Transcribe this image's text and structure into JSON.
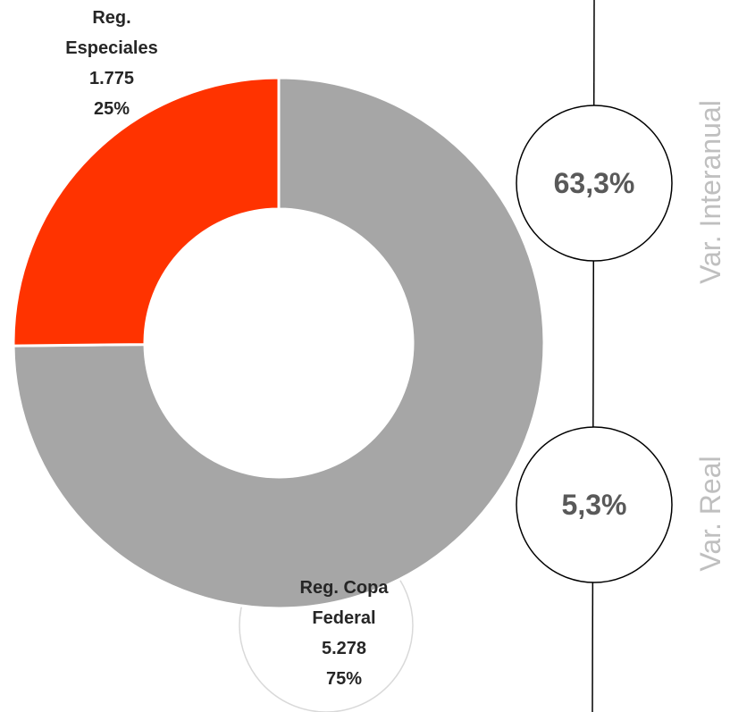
{
  "chart_data": {
    "type": "donut",
    "categories": [
      "Reg. Copa Federal",
      "Reg. Especiales"
    ],
    "values": [
      5278,
      1775
    ],
    "value_labels": [
      "5.278",
      "1.775"
    ],
    "percent_labels": [
      "75%",
      "25%"
    ],
    "colors": [
      "#a6a6a6",
      "#ff3300"
    ]
  },
  "indicators": [
    {
      "label": "Var. Interanual",
      "value": "63,3%"
    },
    {
      "label": "Var. Real",
      "value": "5,3%"
    }
  ]
}
